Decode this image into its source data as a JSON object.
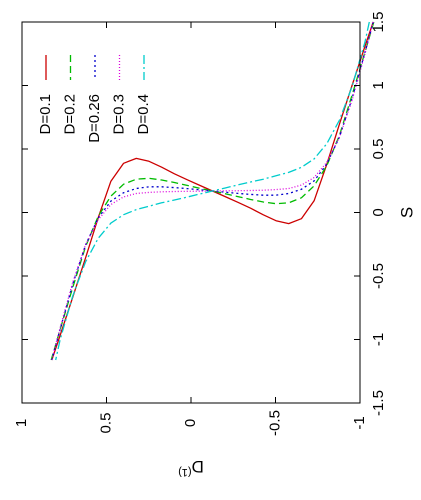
{
  "chart_data": {
    "type": "line",
    "orientation": "rotated-90",
    "xlabel": "S",
    "ylabel": "D(1)",
    "ylabel_base": "D",
    "ylabel_superscript": "(1)",
    "xlim": [
      -1.5,
      1.5
    ],
    "ylim": [
      -1,
      1
    ],
    "xticks": [
      {
        "v": -1.5,
        "label": "-1.5"
      },
      {
        "v": -1,
        "label": "-1"
      },
      {
        "v": -0.5,
        "label": "-0.5"
      },
      {
        "v": 0,
        "label": "0"
      },
      {
        "v": 0.5,
        "label": "0.5"
      },
      {
        "v": 1,
        "label": "1"
      },
      {
        "v": 1.5,
        "label": "1.5"
      }
    ],
    "yticks": [
      {
        "v": 1,
        "label": "1"
      },
      {
        "v": 0.5,
        "label": "0.5"
      },
      {
        "v": 0,
        "label": "0"
      },
      {
        "v": -0.5,
        "label": "-0.5"
      },
      {
        "v": -1,
        "label": "-1"
      }
    ],
    "grid": false,
    "legend_position": "top-left",
    "series": [
      {
        "name": "D=0.1",
        "color": "#cc0000",
        "dash": "solid",
        "x": [
          -1.265,
          -1.2,
          -1.1,
          -1.0,
          -0.9,
          -0.8,
          -0.7,
          -0.6,
          -0.5,
          -0.4,
          -0.3,
          -0.2,
          -0.1,
          0.0,
          0.1,
          0.2,
          0.3,
          0.4,
          0.5,
          0.6,
          0.7,
          0.8,
          0.9,
          1.0,
          1.1,
          1.2,
          1.265
        ],
        "y": [
          1.0,
          0.855,
          0.627,
          0.397,
          0.158,
          -0.058,
          -0.164,
          -0.193,
          -0.176,
          -0.141,
          -0.102,
          -0.067,
          -0.033,
          0.0,
          0.033,
          0.067,
          0.102,
          0.141,
          0.176,
          0.193,
          0.164,
          0.058,
          -0.158,
          -0.397,
          -0.627,
          -0.855,
          -1.0
        ]
      },
      {
        "name": "D=0.2",
        "color": "#00bb00",
        "dash": "7,4",
        "x": [
          -1.27,
          -1.2,
          -1.1,
          -1.0,
          -0.9,
          -0.8,
          -0.7,
          -0.6,
          -0.5,
          -0.4,
          -0.3,
          -0.2,
          -0.1,
          0.0,
          0.1,
          0.2,
          0.3,
          0.4,
          0.5,
          0.6,
          0.7,
          0.8,
          0.9,
          1.0,
          1.1,
          1.2,
          1.27
        ],
        "y": [
          1.0,
          0.82,
          0.57,
          0.33,
          0.15,
          0.03,
          -0.04,
          -0.07,
          -0.075,
          -0.065,
          -0.05,
          -0.033,
          -0.016,
          0.0,
          0.016,
          0.033,
          0.05,
          0.065,
          0.075,
          0.07,
          0.04,
          -0.03,
          -0.15,
          -0.33,
          -0.57,
          -0.82,
          -1.0
        ]
      },
      {
        "name": "D=0.26",
        "color": "#0000cc",
        "dash": "2,3",
        "x": [
          -1.265,
          -1.2,
          -1.1,
          -1.0,
          -0.9,
          -0.8,
          -0.7,
          -0.6,
          -0.5,
          -0.4,
          -0.3,
          -0.2,
          -0.1,
          0.0,
          0.1,
          0.2,
          0.3,
          0.4,
          0.5,
          0.6,
          0.7,
          0.8,
          0.9,
          1.0,
          1.1,
          1.2,
          1.265
        ],
        "y": [
          1.0,
          0.82,
          0.55,
          0.32,
          0.16,
          0.06,
          0.01,
          -0.015,
          -0.025,
          -0.025,
          -0.02,
          -0.014,
          -0.007,
          0.0,
          0.007,
          0.014,
          0.02,
          0.025,
          0.025,
          0.015,
          -0.01,
          -0.06,
          -0.16,
          -0.32,
          -0.55,
          -0.82,
          -1.0
        ]
      },
      {
        "name": "D=0.3",
        "color": "#dd00dd",
        "dash": "1,2",
        "x": [
          -1.265,
          -1.2,
          -1.1,
          -1.0,
          -0.9,
          -0.8,
          -0.7,
          -0.6,
          -0.5,
          -0.4,
          -0.3,
          -0.2,
          -0.1,
          0.0,
          0.1,
          0.2,
          0.3,
          0.4,
          0.5,
          0.6,
          0.7,
          0.8,
          0.9,
          1.0,
          1.1,
          1.2,
          1.265
        ],
        "y": [
          1.0,
          0.81,
          0.54,
          0.32,
          0.17,
          0.08,
          0.035,
          0.015,
          0.008,
          0.005,
          0.003,
          0.002,
          0.001,
          0.0,
          -0.001,
          -0.002,
          -0.003,
          -0.005,
          -0.008,
          -0.015,
          -0.035,
          -0.08,
          -0.17,
          -0.32,
          -0.54,
          -0.81,
          -1.0
        ]
      },
      {
        "name": "D=0.4",
        "color": "#00cccc",
        "dash": "9,3,2,3",
        "x": [
          -1.235,
          -1.2,
          -1.1,
          -1.0,
          -0.9,
          -0.8,
          -0.7,
          -0.6,
          -0.5,
          -0.4,
          -0.3,
          -0.2,
          -0.1,
          0.0,
          0.1,
          0.2,
          0.3,
          0.4,
          0.5,
          0.6,
          0.7,
          0.8,
          0.9,
          1.0,
          1.1,
          1.2,
          1.235
        ],
        "y": [
          1.0,
          0.88,
          0.62,
          0.42,
          0.28,
          0.19,
          0.14,
          0.11,
          0.09,
          0.07,
          0.053,
          0.036,
          0.018,
          0.0,
          -0.018,
          -0.036,
          -0.053,
          -0.07,
          -0.09,
          -0.11,
          -0.14,
          -0.19,
          -0.28,
          -0.42,
          -0.62,
          -0.88,
          -1.0
        ]
      }
    ]
  }
}
